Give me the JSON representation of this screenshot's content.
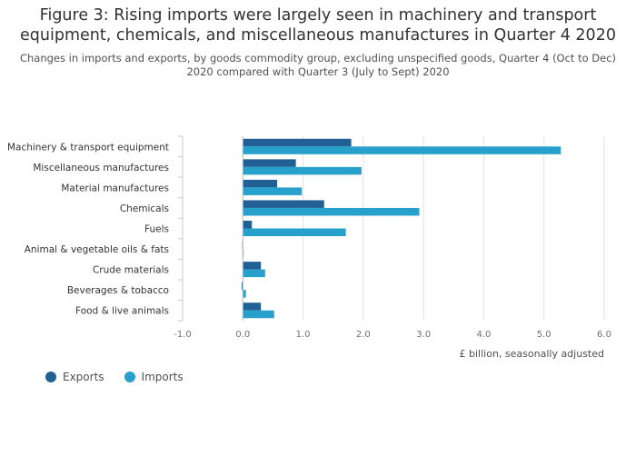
{
  "chart_data": {
    "type": "bar",
    "orientation": "horizontal",
    "title_lines": [
      "Figure 3: Rising imports were largely seen in machinery and transport",
      "equipment, chemicals, and miscellaneous manufactures in Quarter 4 2020"
    ],
    "subtitle_lines": [
      "Changes in imports and exports, by goods commodity group, excluding unspecified goods, Quarter 4 (Oct to Dec)",
      "2020 compared with Quarter 3 (July to Sept) 2020"
    ],
    "categories": [
      "Machinery & transport equipment",
      "Miscellaneous manufactures",
      "Material manufactures",
      "Chemicals",
      "Fuels",
      "Animal & vegetable oils & fats",
      "Crude materials",
      "Beverages & tobacco",
      "Food & live animals"
    ],
    "series": [
      {
        "name": "Exports",
        "color": "#206095",
        "values": [
          1.8,
          0.88,
          0.57,
          1.35,
          0.15,
          -0.01,
          0.3,
          -0.02,
          0.3
        ]
      },
      {
        "name": "Imports",
        "color": "#27a0cc",
        "values": [
          5.28,
          1.97,
          0.98,
          2.93,
          1.71,
          0.01,
          0.37,
          0.05,
          0.52
        ]
      }
    ],
    "xlabel": "£ billion, seasonally adjusted",
    "xlim": [
      -1,
      6
    ],
    "xticks": [
      -1,
      0,
      1,
      2,
      3,
      4,
      5,
      6
    ],
    "xtick_labels": [
      "-1.0",
      "0.0",
      "1.0",
      "2.0",
      "3.0",
      "4.0",
      "5.0",
      "6.0"
    ],
    "legend_position": "bottom-left"
  }
}
